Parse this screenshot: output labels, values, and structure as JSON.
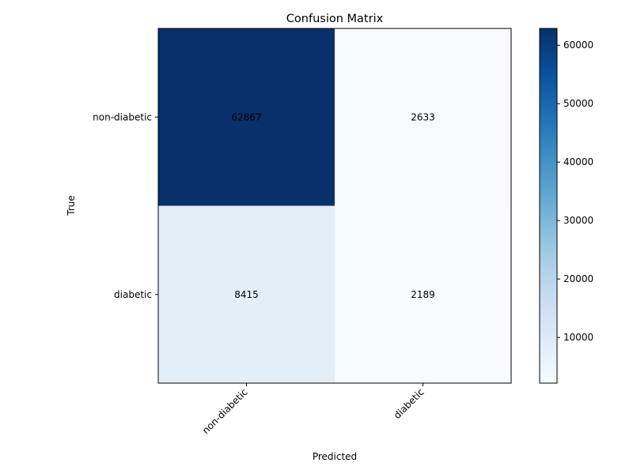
{
  "chart_data": {
    "type": "heatmap",
    "title": "Confusion Matrix",
    "xlabel": "Predicted",
    "ylabel": "True",
    "x_categories": [
      "non-diabetic",
      "diabetic"
    ],
    "y_categories": [
      "non-diabetic",
      "diabetic"
    ],
    "values": [
      [
        62867,
        2633
      ],
      [
        8415,
        2189
      ]
    ],
    "colormap": "Blues",
    "color_range": [
      2189,
      62867
    ],
    "colorbar_ticks": [
      10000,
      20000,
      30000,
      40000,
      50000,
      60000
    ],
    "colorbar_tick_labels": [
      "10000",
      "20000",
      "30000",
      "40000",
      "50000",
      "60000"
    ],
    "cell_labels": [
      [
        "62867",
        "2633"
      ],
      [
        "8415",
        "2189"
      ]
    ]
  }
}
